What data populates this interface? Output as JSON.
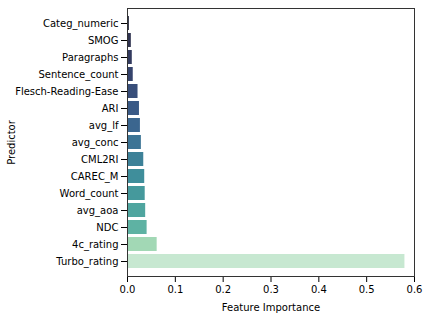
{
  "chart_data": {
    "type": "bar",
    "orientation": "horizontal",
    "x_label": "Feature Importance",
    "y_label": "Predictor",
    "categories": [
      "Categ_numeric",
      "SMOG",
      "Paragraphs",
      "Sentence_count",
      "Flesch-Reading-Ease",
      "ARI",
      "avg_lf",
      "avg_conc",
      "CML2RI",
      "CAREC_M",
      "Word_count",
      "avg_aoa",
      "NDC",
      "4c_rating",
      "Turbo_rating"
    ],
    "values": [
      0.004,
      0.008,
      0.01,
      0.012,
      0.022,
      0.025,
      0.027,
      0.029,
      0.034,
      0.036,
      0.037,
      0.038,
      0.041,
      0.062,
      0.58
    ],
    "colors": [
      "#2b2d42",
      "#2f3350",
      "#323a5e",
      "#35436c",
      "#384e7a",
      "#3a5a86",
      "#3b668f",
      "#3c7495",
      "#3d8198",
      "#3f8e9b",
      "#45999c",
      "#4fa59f",
      "#5eb2a3",
      "#a2d8b5",
      "#c7e8d1"
    ],
    "xlim": [
      0,
      0.6
    ],
    "xticks": [
      {
        "value": 0,
        "label": "0.0"
      },
      {
        "value": 0.1,
        "label": "0.1"
      },
      {
        "value": 0.2,
        "label": "0.2"
      },
      {
        "value": 0.3,
        "label": "0.3"
      },
      {
        "value": 0.4,
        "label": "0.4"
      },
      {
        "value": 0.5,
        "label": "0.5"
      },
      {
        "value": 0.6,
        "label": "0.6"
      }
    ],
    "grid": false
  }
}
